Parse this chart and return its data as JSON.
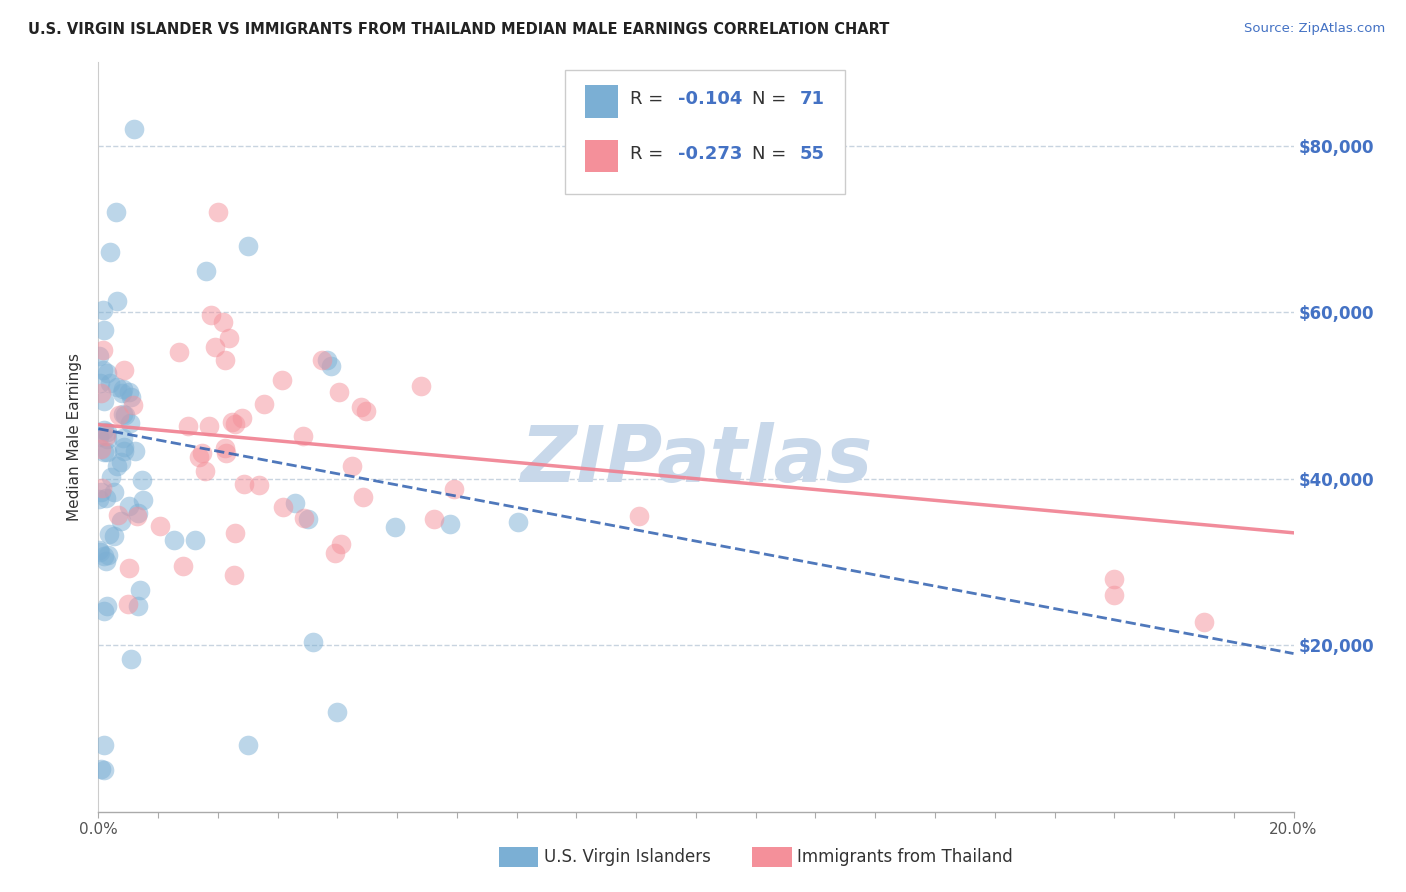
{
  "title": "U.S. VIRGIN ISLANDER VS IMMIGRANTS FROM THAILAND MEDIAN MALE EARNINGS CORRELATION CHART",
  "source": "Source: ZipAtlas.com",
  "ylabel": "Median Male Earnings",
  "xmin": 0.0,
  "xmax": 0.2,
  "ymin": 0,
  "ymax": 90000,
  "yticks": [
    20000,
    40000,
    60000,
    80000
  ],
  "ytick_labels": [
    "$20,000",
    "$40,000",
    "$60,000",
    "$80,000"
  ],
  "watermark": "ZIPatlas",
  "watermark_color": "#c8d8ea",
  "series1_name": "U.S. Virgin Islanders",
  "series2_name": "Immigrants from Thailand",
  "series1_color": "#7bafd4",
  "series2_color": "#f4909a",
  "series1_line_color": "#3060b0",
  "series2_line_color": "#f08090",
  "series1_line_style": "--",
  "series2_line_style": "-",
  "R1": -0.104,
  "N1": 71,
  "R2": -0.273,
  "N2": 55,
  "title_fontsize": 10.5,
  "axis_label_fontsize": 11,
  "tick_fontsize": 11,
  "legend_fontsize": 13,
  "line1_x0": 0.0,
  "line1_y0": 46000,
  "line1_x1": 0.2,
  "line1_y1": 19000,
  "line2_x0": 0.0,
  "line2_y0": 46500,
  "line2_x1": 0.2,
  "line2_y1": 33500
}
